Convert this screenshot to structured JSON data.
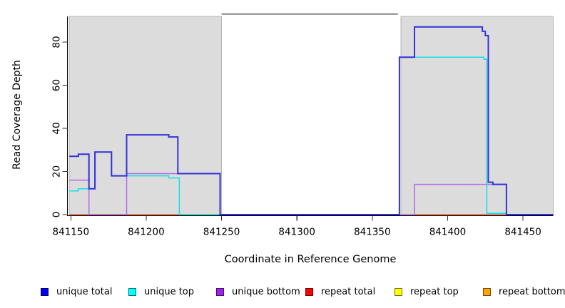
{
  "figure": {
    "xlabel": "Coordinate in Reference Genome",
    "ylabel": "Read Coverage Depth"
  },
  "chart_data": {
    "type": "line",
    "subtype": "step-after",
    "title": "",
    "xlabel": "Coordinate in Reference Genome",
    "ylabel": "Read Coverage Depth",
    "xlim": [
      841148,
      841470
    ],
    "ylim": [
      0,
      92
    ],
    "x_ticks": [
      841150,
      841200,
      841250,
      841300,
      841350,
      841400,
      841450
    ],
    "y_ticks": [
      0,
      20,
      40,
      60,
      80
    ],
    "grid": false,
    "legend_position": "bottom",
    "axis_color": "#000000",
    "background_regions": [
      {
        "name": "shaded-region-left",
        "from": 841149,
        "to": 841250,
        "fill": "#dcdcdc",
        "stroke": "#b6b6b6"
      },
      {
        "name": "shaded-region-right",
        "from": 841369,
        "to": 841470,
        "fill": "#dcdcdc",
        "stroke": "#b6b6b6"
      }
    ],
    "gap_marker": {
      "from": 841250,
      "to": 841367,
      "value": 93,
      "color": "#8a8a8a"
    },
    "series": [
      {
        "name": "unique total",
        "color": "#3232dc",
        "legend_color": "#0000ee",
        "width": 2.0,
        "segments": [
          [
            [
              841149,
              27
            ],
            [
              841155,
              28
            ],
            [
              841162,
              12
            ],
            [
              841166,
              29
            ],
            [
              841177,
              18
            ],
            [
              841187,
              37
            ],
            [
              841215,
              36
            ],
            [
              841221,
              19
            ],
            [
              841249,
              0
            ],
            [
              841368,
              73
            ],
            [
              841378,
              87
            ],
            [
              841422,
              87
            ],
            [
              841423,
              85
            ],
            [
              841425,
              83
            ],
            [
              841427,
              15
            ],
            [
              841430,
              14
            ],
            [
              841439,
              0
            ],
            [
              841470,
              0
            ]
          ]
        ]
      },
      {
        "name": "unique top",
        "color": "#16dfe6",
        "legend_color": "#00ffff",
        "width": 1.5,
        "segments": [
          [
            [
              841149,
              11
            ],
            [
              841155,
              12
            ],
            [
              841166,
              29
            ],
            [
              841177,
              18
            ],
            [
              841215,
              17
            ],
            [
              841222,
              0
            ],
            [
              841368,
              73
            ],
            [
              841424,
              72
            ],
            [
              841426,
              0.6
            ],
            [
              841439,
              0
            ],
            [
              841470,
              0
            ]
          ]
        ]
      },
      {
        "name": "unique bottom",
        "color": "#b56ae2",
        "legend_color": "#a020f0",
        "width": 1.5,
        "segments": [
          [
            [
              841149,
              16
            ],
            [
              841162,
              0
            ],
            [
              841187,
              19
            ],
            [
              841249,
              0
            ],
            [
              841378,
              14
            ],
            [
              841439,
              0
            ],
            [
              841470,
              0
            ]
          ]
        ]
      },
      {
        "name": "repeat total",
        "color": "#e06262",
        "legend_color": "#ff0000",
        "width": 1.5,
        "segments": [
          [
            [
              841149,
              0
            ],
            [
              841250,
              0
            ]
          ],
          [
            [
              841378,
              0
            ],
            [
              841439,
              0
            ]
          ]
        ]
      },
      {
        "name": "repeat top",
        "color": "#ece84e",
        "legend_color": "#ffff00",
        "width": 1.5,
        "segments": [
          [
            [
              841149,
              0
            ],
            [
              841250,
              0
            ]
          ],
          [
            [
              841378,
              0
            ],
            [
              841439,
              0
            ]
          ]
        ]
      },
      {
        "name": "repeat bottom",
        "color": "#ffa51e",
        "legend_color": "#ffa500",
        "width": 1.8,
        "segments": [
          [
            [
              841149,
              0
            ],
            [
              841222,
              0
            ]
          ],
          [
            [
              841378,
              0
            ],
            [
              841430,
              0
            ]
          ]
        ]
      }
    ]
  }
}
